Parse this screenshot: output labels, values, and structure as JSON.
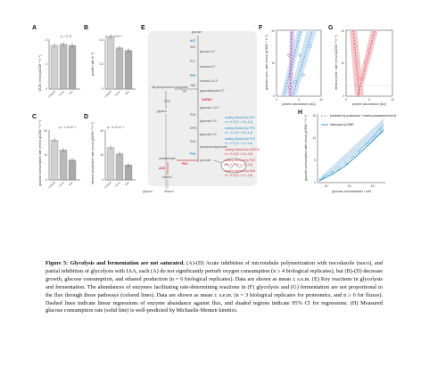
{
  "caption": {
    "figure_label": "Figure 5:",
    "title": "Glycolysis and fermentation are not saturated.",
    "text": "(A)-(D) Acute inhibition of microtubule polymerization with nocodazole (noco), and partial inhibition of glycolysis with IAA, each (A) do not significantly perturb oxygen consumption (n ≥ 4 biological replicates), but (B)-(D) decrease growth, glucose consumption, and ethanol production (n = 6 biological replicates). Data are shown as mean ± s.e.m. (E) Key reactions in glycolysis and fermentation. The abundances of enzymes facilitating rate-determining reactions in (F) glycolysis and (G) fermentation are not proportional to the flux through those pathways (colored lines). Data are shown as mean ± s.e.m. (n = 3 biological replicates for proteomics, and n ≥ 6 for fluxes). Dashed lines indicate linear regressions of enzyme abundance against flux, and shaded regions indicate 95% CI for regressions. (H) Measured glucose consumption rate (solid line) is well-predicted by Michaelis-Menten kinetics."
  },
  "panels": {
    "A": {
      "label": "A",
      "pvalue": "p = 0.74",
      "ylabel": "OCR (mmol gCDW⁻¹ h⁻¹)",
      "categories": [
        "control",
        "noco",
        "IAA"
      ],
      "values": [
        3.5,
        3.6,
        3.5
      ],
      "yticks": [
        "0",
        "2",
        "4"
      ]
    },
    "B": {
      "label": "B",
      "pvalue": "p = 1.6×10⁻⁵",
      "ylabel": "growth rate (h⁻¹)",
      "categories": [
        "control",
        "noco",
        "IAA"
      ],
      "values": [
        0.43,
        0.33,
        0.31
      ],
      "yticks": [
        "0",
        "0.2",
        "0.4"
      ]
    },
    "C": {
      "label": "C",
      "pvalue": "p = 1.8×10⁻⁸",
      "ylabel": "glucose consumption rate (mmol gCDW⁻¹ h⁻¹)",
      "categories": [
        "control",
        "noco",
        "IAA"
      ],
      "values": [
        16,
        12,
        8
      ],
      "yticks": [
        "0",
        "10",
        "20"
      ]
    },
    "D": {
      "label": "D",
      "pvalue": "p = 6.3×10⁻⁸",
      "ylabel": "ethanol production rate (mmol gCDW⁻¹ h⁻¹)",
      "categories": [
        "control",
        "noco",
        "IAA"
      ],
      "values": [
        26,
        21,
        12
      ],
      "yticks": [
        "0",
        "20",
        "40"
      ]
    },
    "E": {
      "label": "E",
      "metabolites": [
        "glucose",
        "glucose-6-P",
        "fructose-6-P",
        "fructose-1,6-P",
        "dihydroxyacetone phosphate",
        "glyceraldehyde-3-P",
        "glycerol",
        "glycerate-1,3-P",
        "glycerate-3-P",
        "glycerate-2-P",
        "phosphoenolpyruvate",
        "pyruvate",
        "acetaldehyde",
        "ethanol",
        "mitochondria"
      ],
      "enzymes": [
        "HXT",
        "HXK",
        "PGI",
        "PFK",
        "FBA",
        "TPI",
        "GPD",
        "GAPDH",
        "PGK",
        "GPM",
        "ENO",
        "PYK",
        "PDC",
        "ADH"
      ],
      "bottom_labels": [
        "glycerol",
        "ethanol"
      ]
    },
    "F": {
      "label": "F",
      "ylabel": "glucose cons. rate (mmol gCDW⁻¹ h⁻¹)",
      "xlabel": "protein abundance (AU)",
      "yticks": [
        "0",
        "10",
        "20"
      ],
      "xticks": [
        "0",
        "5",
        "10"
      ]
    },
    "G": {
      "label": "G",
      "ylabel": "ethanol prod. rate (mmol gCDW⁻¹ h⁻¹)",
      "xlabel": "protein abundance (AU)",
      "yticks": [
        "0",
        "10",
        "20"
      ],
      "xticks": [
        "0",
        "5",
        "10"
      ]
    },
    "H": {
      "label": "H",
      "ylabel": "glucose consumption rate (mmol gCDW⁻¹ h⁻¹)",
      "xlabel": "glucose concentration / mM",
      "xticks": [
        "10⁰",
        "10¹",
        "10²"
      ],
      "yticks": [
        "0",
        "5",
        "10",
        "15"
      ],
      "legend": [
        "predicted by proteomics + kinetic parameters from lit.",
        "measured by NMR"
      ]
    }
  },
  "scaling": [
    {
      "label": "scaling followed by HXT",
      "fit": "m = 0.9 (CI = 0.6–1.3)",
      "color": "#2c8fcc"
    },
    {
      "label": "scaling followed by PFK",
      "fit": "m = 1.1 (CI = 0.8–1.3)",
      "color": "#2c8fcc"
    },
    {
      "label": "scaling followed by PYK",
      "fit": "m = 1.0 (CI = 0.4–1.6)",
      "color": "#2c8fcc"
    },
    {
      "label": "scaling followed by GAPDH",
      "fit": "m = 0.4 (CI = 0.2–0.5)",
      "color": "#d6333a"
    },
    {
      "label": "scaling followed by PDC",
      "fit": "m = 1.7 (CI = 1.2–2.3)",
      "color": "#d6333a"
    },
    {
      "label": "scaling followed by ADH",
      "fit": "m = 0.2 (CI = 0.1–0.3)",
      "color": "#d6333a"
    }
  ],
  "colors": {
    "blue": "#2c8fcc",
    "red": "#d6333a",
    "purple": "#7b3fa0",
    "gray": "#9a9a9a",
    "bar": "#b9b9b9"
  }
}
